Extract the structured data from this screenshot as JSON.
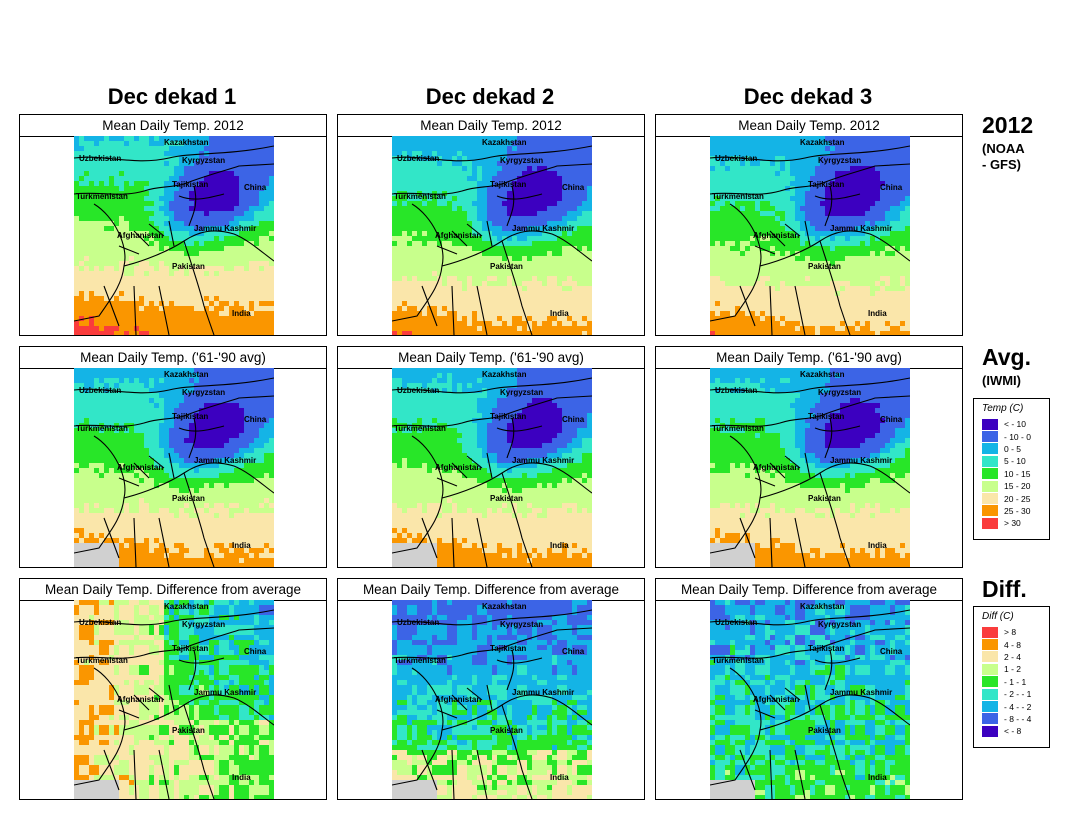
{
  "columns": [
    {
      "title": "Dec dekad 1"
    },
    {
      "title": "Dec dekad 2"
    },
    {
      "title": "Dec dekad 3"
    }
  ],
  "rows": [
    {
      "panel_titles": [
        "Mean Daily Temp. 2012",
        "Mean Daily Temp. 2012",
        "Mean Daily Temp. 2012"
      ],
      "label": "2012",
      "sub_lines": [
        "(NOAA",
        "- GFS)"
      ]
    },
    {
      "panel_titles": [
        "Mean Daily Temp. ('61-'90 avg)",
        "Mean Daily Temp. ('61-'90 avg)",
        "Mean Daily Temp. ('61-'90 avg)"
      ],
      "label": "Avg.",
      "sub_lines": [
        "(IWMI)"
      ]
    },
    {
      "panel_titles": [
        "Mean Daily Temp. Difference from average",
        "Mean Daily Temp. Difference from average",
        "Mean Daily Temp. Difference from average"
      ],
      "label": "Diff.",
      "sub_lines": []
    }
  ],
  "map_labels": {
    "kazakhstan": "Kazakhstan",
    "uzbekistan": "Uzbekistan",
    "kyrgyzstan": "Kyrgyzstan",
    "tajikistan": "Tajikistan",
    "turkmenistan": "Turkmenistan",
    "china": "China",
    "afghanistan": "Afghanistan",
    "jammu_kashmir": "Jammu Kashmir",
    "pakistan": "Pakistan",
    "india": "India"
  },
  "temp_legend": {
    "title": "Temp (C)",
    "items": [
      {
        "label": "<  - 10",
        "color": "#3c00c0"
      },
      {
        "label": "- 10 -   0",
        "color": "#3c64e6"
      },
      {
        "label": "0 -   5",
        "color": "#14b4e6"
      },
      {
        "label": "5 -  10",
        "color": "#32e6c8"
      },
      {
        "label": "10 -  15",
        "color": "#28e628"
      },
      {
        "label": "15 -  20",
        "color": "#c8ff8c"
      },
      {
        "label": "20 -  25",
        "color": "#fae6aa"
      },
      {
        "label": "25 -  30",
        "color": "#fa9600"
      },
      {
        "label": "> 30",
        "color": "#fa3c3c"
      }
    ]
  },
  "diff_legend": {
    "title": "Diff (C)",
    "items": [
      {
        "label": ">  8",
        "color": "#fa3c3c"
      },
      {
        "label": "4 -  8",
        "color": "#fa9600"
      },
      {
        "label": "2 -  4",
        "color": "#fae6aa"
      },
      {
        "label": "1 -  2",
        "color": "#c8ff8c"
      },
      {
        "label": "- 1 -  1",
        "color": "#28e628"
      },
      {
        "label": "- 2 -  - 1",
        "color": "#32e6c8"
      },
      {
        "label": "- 4 -  - 2",
        "color": "#14b4e6"
      },
      {
        "label": "- 8 -  - 4",
        "color": "#3c64e6"
      },
      {
        "label": "<  - 8",
        "color": "#3c00c0"
      }
    ]
  }
}
